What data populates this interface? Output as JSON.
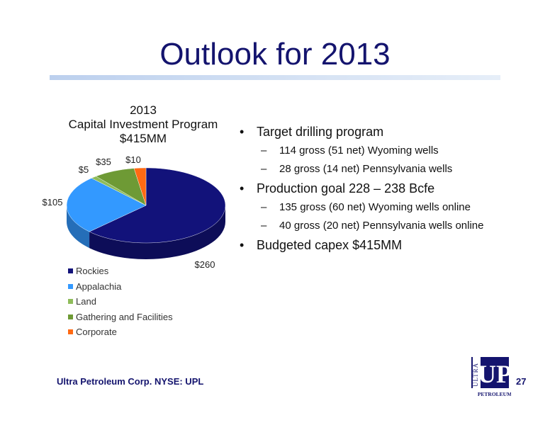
{
  "slide": {
    "title": "Outlook for 2013",
    "footer": "Ultra Petroleum Corp. NYSE: UPL",
    "page_number": "27"
  },
  "bullets": [
    {
      "text": "Target drilling program",
      "sub": [
        "114 gross (51 net) Wyoming wells",
        "28 gross (14 net) Pennsylvania wells"
      ]
    },
    {
      "text": "Production goal 228 – 238 Bcfe",
      "sub": [
        "135 gross (60 net) Wyoming wells online",
        "40 gross (20 net) Pennsylvania wells online"
      ]
    },
    {
      "text": "Budgeted capex $415MM",
      "sub": []
    }
  ],
  "logo": {
    "text_vertical": "ULTRA",
    "text_main": "UP",
    "text_bottom": "PETROLEUM"
  },
  "chart_data": {
    "type": "pie",
    "title_lines": [
      "2013",
      "Capital Investment  Program",
      "$415MM"
    ],
    "categories": [
      "Rockies",
      "Appalachia",
      "Land",
      "Gathering and Facilities",
      "Corporate"
    ],
    "values": [
      260,
      105,
      5,
      35,
      10
    ],
    "data_labels": [
      "$260",
      "$105",
      "$5",
      "$35",
      "$10"
    ],
    "colors": [
      "#12127a",
      "#3399ff",
      "#8fbc5a",
      "#6e9a35",
      "#ff6a13"
    ],
    "legend_position": "bottom-left",
    "three_d": true
  }
}
